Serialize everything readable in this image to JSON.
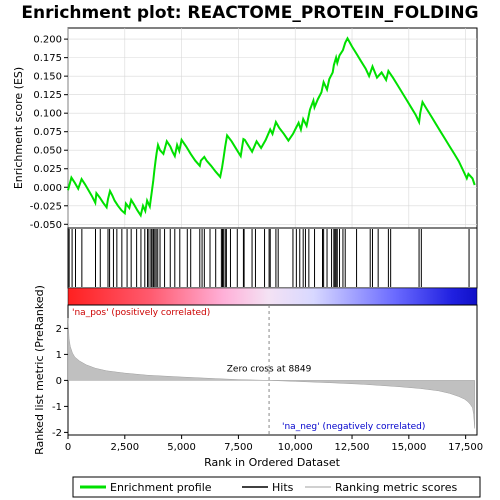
{
  "chart_data": {
    "type": "line",
    "title": "Enrichment plot: REACTOME_PROTEIN_FOLDING",
    "xlabel": "Rank in Ordered Dataset",
    "ylabel_top": "Enrichment score (ES)",
    "ylabel_bottom": "Ranked list metric (PreRanked)",
    "xlim": [
      0,
      18000
    ],
    "xticks": [
      0,
      2500,
      5000,
      7500,
      10000,
      12500,
      15000,
      17500
    ],
    "xtick_labels": [
      "0",
      "2,500",
      "5,000",
      "7,500",
      "10,000",
      "12,500",
      "15,000",
      "17,500"
    ],
    "es_ylim": [
      -0.055,
      0.215
    ],
    "es_yticks": [
      -0.05,
      -0.025,
      0.0,
      0.025,
      0.05,
      0.075,
      0.1,
      0.125,
      0.15,
      0.175,
      0.2
    ],
    "es_ytick_labels": [
      "-0.050",
      "-0.025",
      "0.000",
      "0.025",
      "0.050",
      "0.075",
      "0.100",
      "0.125",
      "0.150",
      "0.175",
      "0.200"
    ],
    "metric_ylim": [
      -2.1,
      2.9
    ],
    "metric_yticks": [
      -2,
      -1,
      0,
      1,
      2
    ],
    "metric_ytick_labels": [
      "-2",
      "-1",
      "0",
      "1",
      "2"
    ],
    "series": [
      {
        "name": "Enrichment profile",
        "color": "#00e000",
        "x": [
          0,
          150,
          300,
          450,
          600,
          750,
          900,
          1050,
          1200,
          1250,
          1400,
          1550,
          1700,
          1760,
          1850,
          1950,
          2050,
          2200,
          2350,
          2500,
          2550,
          2700,
          2780,
          2900,
          3050,
          3200,
          3300,
          3400,
          3480,
          3600,
          3680,
          3750,
          3800,
          3850,
          3900,
          3960,
          4050,
          4200,
          4350,
          4500,
          4600,
          4700,
          4800,
          4900,
          5000,
          5200,
          5400,
          5600,
          5800,
          5850,
          6000,
          6100,
          6300,
          6500,
          6700,
          6780,
          6850,
          6920,
          7000,
          7200,
          7400,
          7600,
          7720,
          7780,
          7900,
          8100,
          8300,
          8500,
          8700,
          8900,
          9000,
          9150,
          9300,
          9500,
          9700,
          9900,
          10000,
          10150,
          10250,
          10350,
          10500,
          10650,
          10800,
          10850,
          11000,
          11150,
          11250,
          11400,
          11500,
          11650,
          11700,
          11800,
          11850,
          11950,
          12100,
          12200,
          12300,
          12500,
          12700,
          12900,
          13100,
          13250,
          13400,
          13600,
          13800,
          14000,
          14100,
          14300,
          14500,
          14700,
          14900,
          15100,
          15300,
          15450,
          15500,
          15600,
          15800,
          16000,
          16200,
          16400,
          16600,
          16800,
          17000,
          17200,
          17400,
          17550,
          17620,
          17800,
          17900
        ],
        "y": [
          -0.004,
          0.013,
          0.006,
          -0.002,
          0.011,
          0.004,
          -0.004,
          -0.012,
          -0.021,
          -0.008,
          -0.014,
          -0.021,
          -0.027,
          -0.016,
          -0.005,
          -0.011,
          -0.018,
          -0.025,
          -0.031,
          -0.035,
          -0.022,
          -0.028,
          -0.017,
          -0.023,
          -0.031,
          -0.038,
          -0.025,
          -0.032,
          -0.018,
          -0.026,
          -0.008,
          0.008,
          0.022,
          0.035,
          0.046,
          0.057,
          0.05,
          0.045,
          0.062,
          0.055,
          0.048,
          0.042,
          0.057,
          0.049,
          0.064,
          0.055,
          0.045,
          0.036,
          0.029,
          0.036,
          0.041,
          0.036,
          0.029,
          0.021,
          0.014,
          0.027,
          0.04,
          0.055,
          0.07,
          0.062,
          0.052,
          0.042,
          0.065,
          0.064,
          0.058,
          0.048,
          0.062,
          0.053,
          0.064,
          0.078,
          0.072,
          0.088,
          0.08,
          0.072,
          0.063,
          0.072,
          0.078,
          0.087,
          0.078,
          0.092,
          0.083,
          0.105,
          0.117,
          0.108,
          0.119,
          0.128,
          0.142,
          0.132,
          0.146,
          0.155,
          0.165,
          0.175,
          0.168,
          0.178,
          0.185,
          0.195,
          0.201,
          0.19,
          0.18,
          0.17,
          0.16,
          0.15,
          0.163,
          0.148,
          0.155,
          0.145,
          0.157,
          0.148,
          0.138,
          0.128,
          0.118,
          0.108,
          0.098,
          0.088,
          0.1,
          0.115,
          0.105,
          0.095,
          0.085,
          0.075,
          0.065,
          0.055,
          0.045,
          0.035,
          0.022,
          0.012,
          0.018,
          0.012,
          0.003
        ]
      }
    ],
    "hits": [
      50,
      180,
      330,
      610,
      1210,
      1420,
      1760,
      1830,
      2000,
      2150,
      2370,
      2600,
      2780,
      3020,
      3210,
      3380,
      3500,
      3560,
      3650,
      3700,
      3760,
      3820,
      3880,
      3950,
      4050,
      4250,
      4500,
      4700,
      4920,
      5250,
      5400,
      5800,
      5900,
      6000,
      6250,
      6500,
      6750,
      6800,
      6850,
      6920,
      6970,
      7150,
      7450,
      7720,
      7750,
      8100,
      8250,
      8650,
      8850,
      8900,
      9150,
      9250,
      9900,
      10050,
      10200,
      10350,
      10450,
      10600,
      10850,
      11200,
      11250,
      11400,
      11600,
      11700,
      11750,
      11800,
      11850,
      11950,
      12100,
      12200,
      12700,
      13300,
      13400,
      13650,
      14100,
      14200,
      15450,
      15550,
      17650
    ],
    "metric": {
      "label": "Ranking metric scores",
      "x": [
        0,
        50,
        100,
        200,
        300,
        500,
        800,
        1200,
        1700,
        2500,
        3500,
        5000,
        6500,
        7500,
        8849,
        10000,
        11500,
        13000,
        14500,
        15500,
        16300,
        16800,
        17200,
        17450,
        17600,
        17700,
        17800,
        17850,
        17900
      ],
      "y": [
        2.4,
        1.6,
        1.3,
        1.05,
        0.9,
        0.75,
        0.6,
        0.47,
        0.37,
        0.28,
        0.2,
        0.13,
        0.07,
        0.03,
        0.0,
        -0.04,
        -0.09,
        -0.15,
        -0.24,
        -0.31,
        -0.4,
        -0.5,
        -0.62,
        -0.72,
        -0.82,
        -0.92,
        -1.05,
        -1.3,
        -1.85
      ]
    },
    "zero_cross": 8849,
    "zero_cross_label": "Zero cross at 8849",
    "pos_label": "'na_pos' (positively correlated)",
    "neg_label": "'na_neg' (negatively correlated)",
    "legend": [
      "Enrichment profile",
      "Hits",
      "Ranking metric scores"
    ],
    "legend_position": "bottom"
  }
}
